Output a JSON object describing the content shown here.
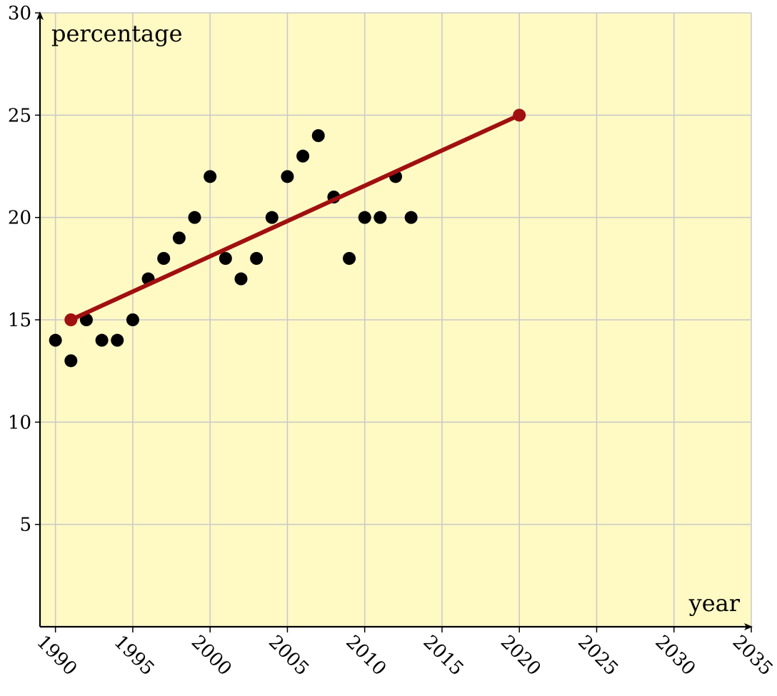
{
  "chart_data": {
    "type": "scatter",
    "title": "",
    "xlabel": "year",
    "ylabel": "percentage",
    "xlim": [
      1989,
      2035
    ],
    "ylim": [
      0,
      30
    ],
    "x_ticks": [
      "1990",
      "1995",
      "2000",
      "2005",
      "2010",
      "2015",
      "2020",
      "2025",
      "2030",
      "2035"
    ],
    "y_ticks": [
      "5",
      "10",
      "15",
      "20",
      "25",
      "30"
    ],
    "grid": true,
    "background_color": "#fff9c4",
    "grid_color": "#c8c8c8",
    "series": [
      {
        "type": "scatter",
        "color": "#000000",
        "points": [
          [
            1990,
            14
          ],
          [
            1991,
            13
          ],
          [
            1992,
            15
          ],
          [
            1993,
            14
          ],
          [
            1994,
            14
          ],
          [
            1995,
            15
          ],
          [
            1996,
            17
          ],
          [
            1997,
            18
          ],
          [
            1998,
            19
          ],
          [
            1999,
            20
          ],
          [
            2000,
            22
          ],
          [
            2001,
            18
          ],
          [
            2002,
            17
          ],
          [
            2003,
            18
          ],
          [
            2004,
            20
          ],
          [
            2005,
            22
          ],
          [
            2006,
            23
          ],
          [
            2007,
            24
          ],
          [
            2008,
            21
          ],
          [
            2009,
            18
          ],
          [
            2010,
            20
          ],
          [
            2011,
            20
          ],
          [
            2012,
            22
          ],
          [
            2013,
            20
          ]
        ]
      },
      {
        "type": "line",
        "color": "#a01010",
        "points": [
          [
            1991,
            15
          ],
          [
            2020,
            25
          ]
        ]
      }
    ]
  }
}
